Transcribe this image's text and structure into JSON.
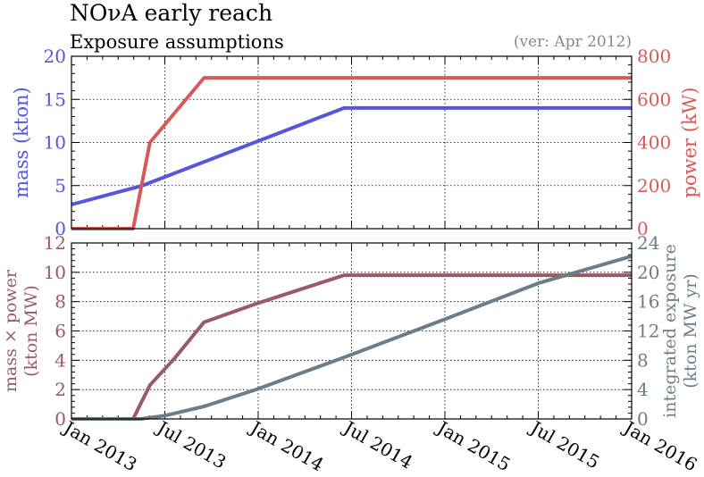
{
  "header": {
    "title": "NOνA early reach",
    "subtitle": "Exposure assumptions",
    "version": "(ver: Apr 2012)"
  },
  "colors": {
    "mass": "#5555dd",
    "power": "#d65a5a",
    "mass_x_power": "#9a5a63",
    "integrated": "#6a7d89",
    "version_text": "#888888"
  },
  "chart_data": [
    {
      "type": "line",
      "ylabel_left": "mass  (kton)",
      "ylabel_right": "power  (kW)",
      "x_ticks": [
        "Jan 2013",
        "Jul 2013",
        "Jan 2014",
        "Jul 2014",
        "Jan 2015",
        "Jul 2015",
        "Jan 2016"
      ],
      "xlim": [
        2013.0,
        2016.0
      ],
      "ylim_left": [
        0,
        20
      ],
      "ylim_right": [
        0,
        800
      ],
      "y_ticks_left": [
        "0",
        "5",
        "10",
        "15",
        "20"
      ],
      "y_ticks_right": [
        "0",
        "200",
        "400",
        "600",
        "800"
      ],
      "grid": true,
      "series": [
        {
          "axis": "left",
          "color_key": "mass",
          "x": [
            2013.0,
            2013.38,
            2014.46,
            2016.0
          ],
          "y": [
            2.8,
            5.0,
            14.0,
            14.0
          ]
        },
        {
          "axis": "right",
          "color_key": "power",
          "x": [
            2013.0,
            2013.33,
            2013.42,
            2013.71,
            2016.0
          ],
          "y": [
            0,
            0,
            400,
            700,
            700
          ]
        }
      ]
    },
    {
      "type": "line",
      "ylabel_left": "mass × power",
      "ylabel_left_2": "(kton MW)",
      "ylabel_right": "integrated exposure",
      "ylabel_right_2": "(kton MW yr)",
      "x_ticks": [
        "Jan 2013",
        "Jul 2013",
        "Jan 2014",
        "Jul 2014",
        "Jan 2015",
        "Jul 2015",
        "Jan 2016"
      ],
      "xlim": [
        2013.0,
        2016.0
      ],
      "ylim_left": [
        0,
        12
      ],
      "ylim_right": [
        0,
        24
      ],
      "y_ticks_left": [
        "0",
        "2",
        "4",
        "6",
        "8",
        "10",
        "12"
      ],
      "y_ticks_right": [
        "0",
        "4",
        "8",
        "12",
        "16",
        "20",
        "24"
      ],
      "grid": true,
      "series": [
        {
          "axis": "left",
          "color_key": "mass_x_power",
          "x": [
            2013.0,
            2013.33,
            2013.42,
            2013.55,
            2013.71,
            2014.0,
            2014.46,
            2016.0
          ],
          "y": [
            0,
            0,
            2.3,
            4.1,
            6.6,
            7.9,
            9.8,
            9.8
          ]
        },
        {
          "axis": "right",
          "color_key": "integrated",
          "x": [
            2013.0,
            2013.37,
            2013.5,
            2013.71,
            2014.0,
            2014.46,
            2015.0,
            2015.5,
            2016.0
          ],
          "y": [
            0,
            0,
            0.45,
            1.7,
            4.1,
            8.4,
            13.6,
            18.5,
            22.2
          ]
        }
      ]
    }
  ]
}
